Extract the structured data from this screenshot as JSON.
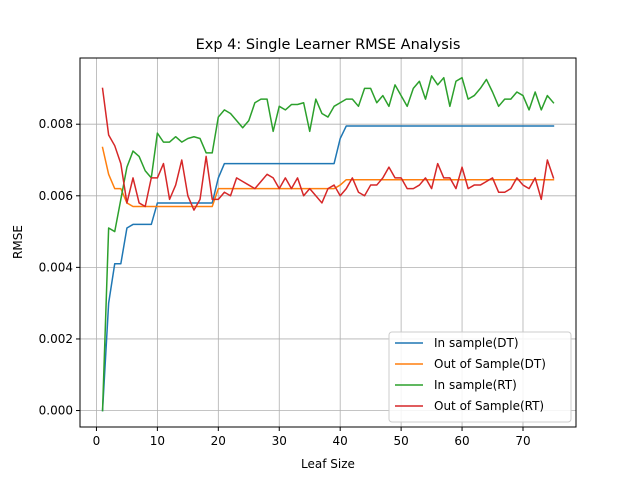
{
  "chart_data": {
    "type": "line",
    "title": "Exp 4: Single Learner RMSE Analysis",
    "xlabel": "Leaf Size",
    "ylabel": "RMSE",
    "xlim": [
      -2.7,
      78.7
    ],
    "ylim": [
      -0.00046,
      0.00985
    ],
    "xticks": [
      0,
      10,
      20,
      30,
      40,
      50,
      60,
      70
    ],
    "yticks": [
      0.0,
      0.002,
      0.004,
      0.006,
      0.008
    ],
    "ytick_labels": [
      "0.000",
      "0.002",
      "0.004",
      "0.006",
      "0.008"
    ],
    "grid": true,
    "legend_position": "lower-right",
    "series": [
      {
        "name": "In sample(DT)",
        "color": "#1f77b4",
        "x": [
          1,
          2,
          3,
          4,
          5,
          6,
          7,
          8,
          9,
          10,
          11,
          12,
          13,
          14,
          15,
          16,
          17,
          18,
          19,
          20,
          21,
          22,
          23,
          24,
          25,
          26,
          27,
          28,
          29,
          30,
          31,
          32,
          33,
          34,
          35,
          36,
          37,
          38,
          39,
          40,
          41,
          42,
          43,
          44,
          45,
          46,
          47,
          48,
          49,
          50,
          51,
          52,
          53,
          54,
          55,
          56,
          57,
          58,
          59,
          60,
          61,
          62,
          63,
          64,
          65,
          66,
          67,
          68,
          69,
          70,
          71,
          72,
          73,
          74,
          75
        ],
        "y": [
          0.0,
          0.003,
          0.0041,
          0.0041,
          0.0051,
          0.0052,
          0.0052,
          0.0052,
          0.0052,
          0.0058,
          0.0058,
          0.0058,
          0.0058,
          0.0058,
          0.0058,
          0.0058,
          0.0058,
          0.0058,
          0.0058,
          0.0065,
          0.0069,
          0.0069,
          0.0069,
          0.0069,
          0.0069,
          0.0069,
          0.0069,
          0.0069,
          0.0069,
          0.0069,
          0.0069,
          0.0069,
          0.0069,
          0.0069,
          0.0069,
          0.0069,
          0.0069,
          0.0069,
          0.0069,
          0.0076,
          0.00795,
          0.00795,
          0.00795,
          0.00795,
          0.00795,
          0.00795,
          0.00795,
          0.00795,
          0.00795,
          0.00795,
          0.00795,
          0.00795,
          0.00795,
          0.00795,
          0.00795,
          0.00795,
          0.00795,
          0.00795,
          0.00795,
          0.00795,
          0.00795,
          0.00795,
          0.00795,
          0.00795,
          0.00795,
          0.00795,
          0.00795,
          0.00795,
          0.00795,
          0.00795,
          0.00795,
          0.00795,
          0.00795,
          0.00795,
          0.00795
        ]
      },
      {
        "name": "Out of Sample(DT)",
        "color": "#ff7f0e",
        "x": [
          1,
          2,
          3,
          4,
          5,
          6,
          7,
          8,
          9,
          10,
          11,
          12,
          13,
          14,
          15,
          16,
          17,
          18,
          19,
          20,
          21,
          22,
          23,
          24,
          25,
          26,
          27,
          28,
          29,
          30,
          31,
          32,
          33,
          34,
          35,
          36,
          37,
          38,
          39,
          40,
          41,
          42,
          43,
          44,
          45,
          46,
          47,
          48,
          49,
          50,
          51,
          52,
          53,
          54,
          55,
          56,
          57,
          58,
          59,
          60,
          61,
          62,
          63,
          64,
          65,
          66,
          67,
          68,
          69,
          70,
          71,
          72,
          73,
          74,
          75
        ],
        "y": [
          0.00735,
          0.0066,
          0.0062,
          0.0062,
          0.0058,
          0.0057,
          0.0057,
          0.0057,
          0.0057,
          0.0057,
          0.0057,
          0.0057,
          0.0057,
          0.0057,
          0.0057,
          0.0057,
          0.0057,
          0.0057,
          0.0057,
          0.0062,
          0.0062,
          0.0062,
          0.0062,
          0.0062,
          0.0062,
          0.0062,
          0.0062,
          0.0062,
          0.0062,
          0.0062,
          0.0062,
          0.0062,
          0.0062,
          0.0062,
          0.0062,
          0.0062,
          0.0062,
          0.0062,
          0.0062,
          0.0063,
          0.00645,
          0.00645,
          0.00645,
          0.00645,
          0.00645,
          0.00645,
          0.00645,
          0.00645,
          0.00645,
          0.00645,
          0.00645,
          0.00645,
          0.00645,
          0.00645,
          0.00645,
          0.00645,
          0.00645,
          0.00645,
          0.00645,
          0.00645,
          0.00645,
          0.00645,
          0.00645,
          0.00645,
          0.00645,
          0.00645,
          0.00645,
          0.00645,
          0.00645,
          0.00645,
          0.00645,
          0.00645,
          0.00645,
          0.00645,
          0.00645
        ]
      },
      {
        "name": "In sample(RT)",
        "color": "#2ca02c",
        "x": [
          1,
          2,
          3,
          4,
          5,
          6,
          7,
          8,
          9,
          10,
          11,
          12,
          13,
          14,
          15,
          16,
          17,
          18,
          19,
          20,
          21,
          22,
          23,
          24,
          25,
          26,
          27,
          28,
          29,
          30,
          31,
          32,
          33,
          34,
          35,
          36,
          37,
          38,
          39,
          40,
          41,
          42,
          43,
          44,
          45,
          46,
          47,
          48,
          49,
          50,
          51,
          52,
          53,
          54,
          55,
          56,
          57,
          58,
          59,
          60,
          61,
          62,
          63,
          64,
          65,
          66,
          67,
          68,
          69,
          70,
          71,
          72,
          73,
          74,
          75
        ],
        "y": [
          0.0,
          0.0051,
          0.005,
          0.0059,
          0.0068,
          0.00725,
          0.0071,
          0.0067,
          0.0065,
          0.00775,
          0.0075,
          0.0075,
          0.00765,
          0.0075,
          0.0076,
          0.00765,
          0.0076,
          0.0072,
          0.0072,
          0.0082,
          0.0084,
          0.0083,
          0.0081,
          0.0079,
          0.0081,
          0.0086,
          0.0087,
          0.0087,
          0.0078,
          0.0085,
          0.0084,
          0.00855,
          0.00855,
          0.0086,
          0.0078,
          0.0087,
          0.0083,
          0.0082,
          0.0085,
          0.0086,
          0.0087,
          0.0087,
          0.0085,
          0.009,
          0.009,
          0.0086,
          0.0088,
          0.0085,
          0.0091,
          0.0088,
          0.0085,
          0.009,
          0.0092,
          0.0087,
          0.00935,
          0.0091,
          0.0093,
          0.0085,
          0.0092,
          0.0093,
          0.0087,
          0.0088,
          0.009,
          0.00925,
          0.0089,
          0.0085,
          0.0087,
          0.0087,
          0.0089,
          0.0088,
          0.0084,
          0.0089,
          0.0084,
          0.0088,
          0.0086
        ]
      },
      {
        "name": "Out of Sample(RT)",
        "color": "#d62728",
        "x": [
          1,
          2,
          3,
          4,
          5,
          6,
          7,
          8,
          9,
          10,
          11,
          12,
          13,
          14,
          15,
          16,
          17,
          18,
          19,
          20,
          21,
          22,
          23,
          24,
          25,
          26,
          27,
          28,
          29,
          30,
          31,
          32,
          33,
          34,
          35,
          36,
          37,
          38,
          39,
          40,
          41,
          42,
          43,
          44,
          45,
          46,
          47,
          48,
          49,
          50,
          51,
          52,
          53,
          54,
          55,
          56,
          57,
          58,
          59,
          60,
          61,
          62,
          63,
          64,
          65,
          66,
          67,
          68,
          69,
          70,
          71,
          72,
          73,
          74,
          75
        ],
        "y": [
          0.009,
          0.0077,
          0.0074,
          0.0069,
          0.0058,
          0.0065,
          0.0058,
          0.0057,
          0.0065,
          0.0065,
          0.0069,
          0.0059,
          0.0063,
          0.007,
          0.006,
          0.0056,
          0.0059,
          0.0071,
          0.0059,
          0.0059,
          0.0061,
          0.006,
          0.0065,
          0.0064,
          0.0063,
          0.0062,
          0.0064,
          0.0066,
          0.0065,
          0.0062,
          0.0065,
          0.0062,
          0.0065,
          0.006,
          0.0062,
          0.006,
          0.0058,
          0.0062,
          0.0063,
          0.006,
          0.0062,
          0.0065,
          0.0061,
          0.006,
          0.0063,
          0.0063,
          0.0065,
          0.0068,
          0.0065,
          0.0065,
          0.0062,
          0.0062,
          0.0063,
          0.0065,
          0.0062,
          0.0069,
          0.0065,
          0.0065,
          0.0062,
          0.0068,
          0.0062,
          0.0063,
          0.0063,
          0.0064,
          0.0065,
          0.0061,
          0.0061,
          0.0062,
          0.0065,
          0.0063,
          0.0062,
          0.0065,
          0.0059,
          0.007,
          0.0065
        ]
      }
    ]
  }
}
